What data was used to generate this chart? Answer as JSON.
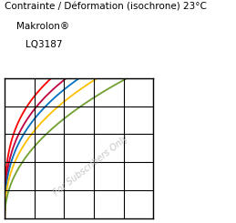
{
  "title_line1": "Contrainte / Déformation (isochrone) 23°C",
  "title_line2": "Makrolon®",
  "title_line3": "LQ3187",
  "watermark": "For Subscribers Only",
  "background_color": "#ffffff",
  "grid_color": "#000000",
  "curves": [
    {
      "color": "#ff0000",
      "E": 62,
      "exp": 0.3
    },
    {
      "color": "#c00040",
      "E": 55,
      "exp": 0.34
    },
    {
      "color": "#0070c0",
      "E": 50,
      "exp": 0.37
    },
    {
      "color": "#ffc000",
      "E": 44,
      "exp": 0.41
    },
    {
      "color": "#70a030",
      "E": 36,
      "exp": 0.47
    }
  ],
  "xlim": [
    0,
    5
  ],
  "ylim": [
    0,
    70
  ],
  "xticks": [
    1,
    2,
    3,
    4,
    5
  ],
  "yticks": [
    14,
    28,
    42,
    56,
    70
  ],
  "title_fontsize": 7.5,
  "subtitle_fontsize": 7.5,
  "watermark_fontsize": 7.0,
  "linewidth": 1.3
}
